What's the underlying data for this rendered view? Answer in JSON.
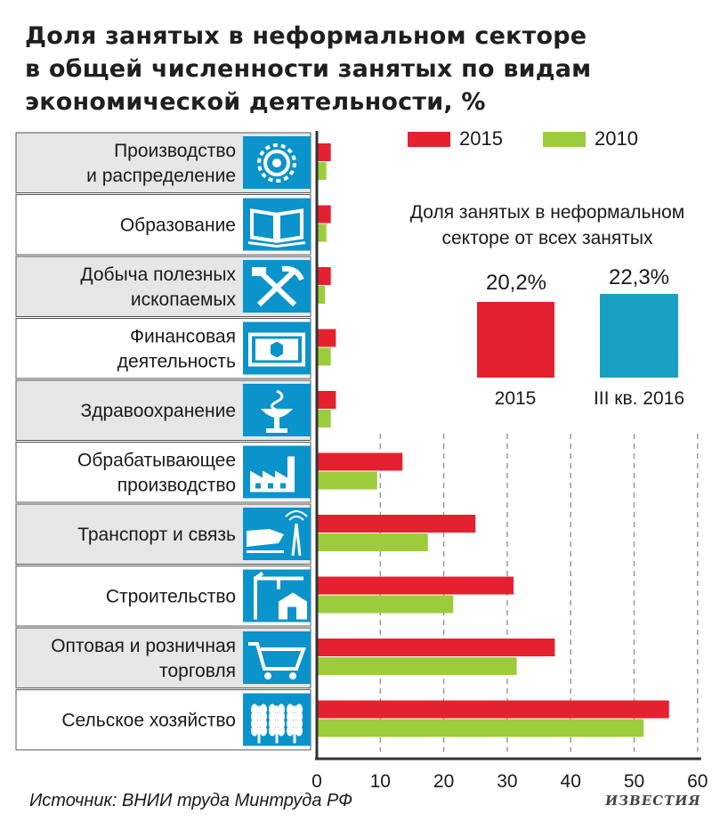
{
  "title_lines": [
    "Доля занятых в неформальном секторе",
    "в общей численности занятых по видам",
    "экономической деятельности, %"
  ],
  "colors": {
    "s2015": "#e5212f",
    "s2010": "#9ccc3b",
    "inset2016": "#1aa0c2",
    "icon_bg": "#0b93cb",
    "axis": "#333333",
    "grid": "#9a9a9a"
  },
  "legend": [
    {
      "label": "2015",
      "color": "#e5212f"
    },
    {
      "label": "2010",
      "color": "#9ccc3b"
    }
  ],
  "inset": {
    "title_lines": [
      "Доля занятых в неформальном",
      "секторе от всех занятых"
    ],
    "items": [
      {
        "value_label": "20,2%",
        "value": 20.2,
        "label": "2015",
        "color": "#e5212f"
      },
      {
        "value_label": "22,3%",
        "value": 22.3,
        "label": "III кв. 2016",
        "color": "#1aa0c2"
      }
    ]
  },
  "chart_data": {
    "type": "bar",
    "orientation": "horizontal",
    "title": "Доля занятых в неформальном секторе в общей численности занятых по видам экономической деятельности, %",
    "categories": [
      [
        "Производство",
        "и распределение"
      ],
      [
        "Образование"
      ],
      [
        "Добыча полезных",
        "ископаемых"
      ],
      [
        "Финансовая",
        "деятельность"
      ],
      [
        "Здравоохранение"
      ],
      [
        "Обрабатывающее",
        "производство"
      ],
      [
        "Транспорт и связь"
      ],
      [
        "Строительство"
      ],
      [
        "Оптовая и розничная",
        "торговля"
      ],
      [
        "Сельское хозяйство"
      ]
    ],
    "icons": [
      "gear-icon",
      "book-icon",
      "pickaxe-icon",
      "money-icon",
      "medicine-icon",
      "factory-icon",
      "train-icon",
      "crane-icon",
      "cart-icon",
      "wheat-icon"
    ],
    "series": [
      {
        "name": "2015",
        "color": "#e5212f",
        "values": [
          2.2,
          2.2,
          2.2,
          3.0,
          3.0,
          13.5,
          25.0,
          31.0,
          37.5,
          55.5
        ]
      },
      {
        "name": "2010",
        "color": "#9ccc3b",
        "values": [
          1.5,
          1.5,
          1.3,
          2.2,
          2.2,
          9.5,
          17.5,
          21.5,
          31.5,
          51.5
        ]
      }
    ],
    "xlim": [
      0,
      60
    ],
    "xticks": [
      0,
      10,
      20,
      30,
      40,
      50,
      60
    ],
    "grid": true
  },
  "source": "Источник: ВНИИ труда Минтруда РФ",
  "logo": "ИЗВЕСТИЯ"
}
